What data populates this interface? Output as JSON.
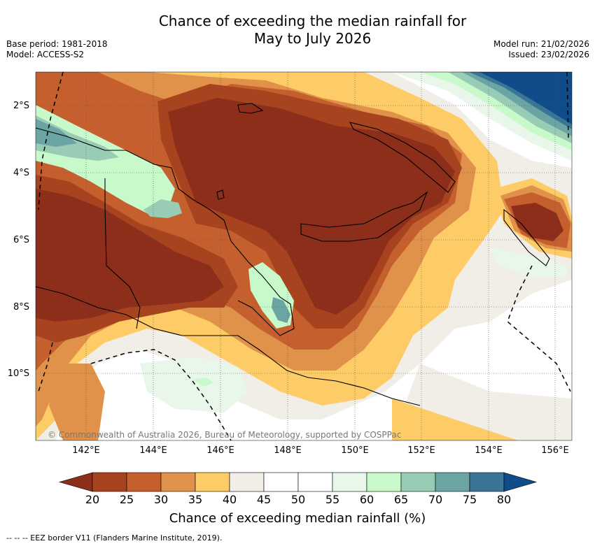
{
  "title": {
    "line1": "Chance of exceeding the median rainfall for",
    "line2": "May to July 2026"
  },
  "meta_left": {
    "base_period": "Base period: 1981-2018",
    "model": "Model: ACCESS-S2"
  },
  "meta_right": {
    "model_run": "Model run: 21/02/2026",
    "issued": "Issued: 23/02/2026"
  },
  "map": {
    "x_ticks": [
      "142°E",
      "144°E",
      "146°E",
      "148°E",
      "150°E",
      "152°E",
      "154°E",
      "156°E"
    ],
    "y_ticks": [
      "2°S",
      "4°S",
      "6°S",
      "8°S",
      "10°S"
    ],
    "attribution": "© Commonwealth of Australia 2026, Bureau of Meteorology, supported by COSPPac"
  },
  "colorbar": {
    "ticks": [
      "20",
      "25",
      "30",
      "35",
      "40",
      "45",
      "50",
      "55",
      "60",
      "65",
      "70",
      "75",
      "80"
    ],
    "colors": [
      "#8d2e1b",
      "#a8431f",
      "#c5602e",
      "#e0914a",
      "#fdcc66",
      "#f1ede7",
      "#ffffff",
      "#ffffff",
      "#e9f7ea",
      "#c7f9cb",
      "#99ccb5",
      "#6aa5a4",
      "#3b7596",
      "#0f4c89"
    ],
    "label": "Chance of exceeding median rainfall (%)"
  },
  "footer": "-- -- -- EEZ border V11 (Flanders Marine Institute, 2019)."
}
